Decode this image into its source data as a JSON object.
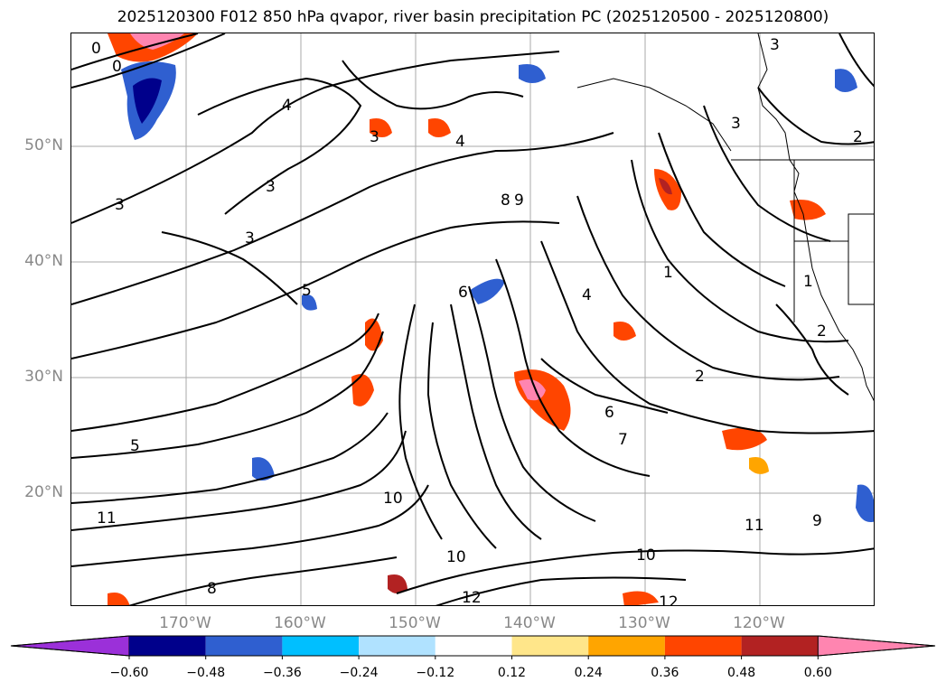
{
  "title": "2025120300 F012 850 hPa qvapor, river basin precipitation PC (2025120500 - 2025120800)",
  "map": {
    "lat_labels": [
      "50°N",
      "40°N",
      "30°N",
      "20°N"
    ],
    "lon_labels": [
      "170°W",
      "160°W",
      "150°W",
      "140°W",
      "130°W",
      "120°W"
    ],
    "contour_labels": [
      "0",
      "3",
      "4",
      "3",
      "3",
      "4",
      "5",
      "6",
      "8",
      "9",
      "10",
      "10",
      "11",
      "12",
      "12",
      "1",
      "2",
      "2",
      "3",
      "5",
      "6",
      "7",
      "8",
      "10",
      "11",
      "3",
      "4",
      "1",
      "2",
      "3",
      "0",
      "9"
    ]
  },
  "colorbar": {
    "ticks": [
      "−0.60",
      "−0.48",
      "−0.36",
      "−0.24",
      "−0.12",
      "0.12",
      "0.24",
      "0.36",
      "0.48",
      "0.60"
    ],
    "colors": [
      "#9b30d9",
      "#00008b",
      "#2f5fd0",
      "#00bfff",
      "#b0e2ff",
      "#ffffff",
      "#ffe68a",
      "#ffa500",
      "#ff4500",
      "#b22222",
      "#ff85b0"
    ]
  }
}
